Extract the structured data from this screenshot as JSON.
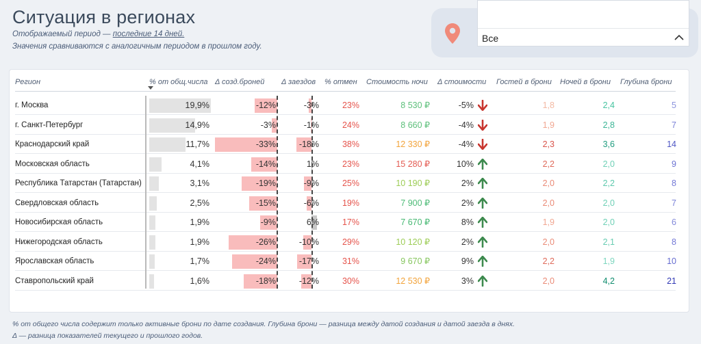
{
  "header": {
    "title": "Ситуация в регионах",
    "subtitle_prefix": "Отображаемый период — ",
    "subtitle_link": "последние 14 дней.",
    "subtitle2": "Значения сравниваются с аналогичным периодом в прошлом году."
  },
  "filter": {
    "selected": "Все",
    "icon": "location-pin-icon",
    "chevron_icon": "chevron-up-icon"
  },
  "table": {
    "columns": [
      "Регион",
      "% от общ.числа",
      "Δ созд.броней",
      "Δ заездов",
      "% отмен",
      "Стоимость ночи",
      "Δ стоимости",
      "Гостей в брони",
      "Ночей в брони",
      "Глубина брони"
    ],
    "rows": [
      {
        "region": "г. Москва",
        "share": "19,9%",
        "share_v": 19.9,
        "created": "-12%",
        "created_v": -12,
        "checkins": "-3%",
        "checkins_v": -3,
        "cancel": "23%",
        "price": "8 530 ₽",
        "price_color": "#5cbf7a",
        "dprice": "-5%",
        "dir": "down",
        "guests": "1,8",
        "guests_color": "#f3b9a3",
        "nights": "2,4",
        "nights_color": "#46c3a0",
        "depth": "5",
        "depth_color": "#8c93dd"
      },
      {
        "region": "г. Санкт-Петербург",
        "share": "14,9%",
        "share_v": 14.9,
        "created": "-3%",
        "created_v": -3,
        "checkins": "-1%",
        "checkins_v": -1,
        "cancel": "24%",
        "price": "8 660 ₽",
        "price_color": "#5cbf7a",
        "dprice": "-4%",
        "dir": "down",
        "guests": "1,9",
        "guests_color": "#f1a792",
        "nights": "2,8",
        "nights_color": "#3cb596",
        "depth": "7",
        "depth_color": "#7b82d8"
      },
      {
        "region": "Краснодарский край",
        "share": "11,7%",
        "share_v": 11.7,
        "created": "-33%",
        "created_v": -33,
        "checkins": "-18%",
        "checkins_v": -18,
        "cancel": "38%",
        "price": "12 330 ₽",
        "price_color": "#f2a33a",
        "dprice": "-4%",
        "dir": "down",
        "guests": "2,3",
        "guests_color": "#d9534a",
        "nights": "3,6",
        "nights_color": "#1f9c7e",
        "depth": "14",
        "depth_color": "#4f57c4"
      },
      {
        "region": "Московская область",
        "share": "4,1%",
        "share_v": 4.1,
        "created": "-14%",
        "created_v": -14,
        "checkins": "1%",
        "checkins_v": 1,
        "cancel": "23%",
        "price": "15 280 ₽",
        "price_color": "#e35b52",
        "dprice": "10%",
        "dir": "up",
        "guests": "2,2",
        "guests_color": "#df6a5a",
        "nights": "2,0",
        "nights_color": "#6fd0b6",
        "depth": "9",
        "depth_color": "#6b72d2"
      },
      {
        "region": "Республика Татарстан (Татарстан)",
        "share": "3,1%",
        "share_v": 3.1,
        "created": "-19%",
        "created_v": -19,
        "checkins": "-9%",
        "checkins_v": -9,
        "cancel": "25%",
        "price": "10 190 ₽",
        "price_color": "#9ccc55",
        "dprice": "2%",
        "dir": "up",
        "guests": "2,0",
        "guests_color": "#ea8a76",
        "nights": "2,2",
        "nights_color": "#5cc8ac",
        "depth": "8",
        "depth_color": "#7378d6"
      },
      {
        "region": "Свердловская область",
        "share": "2,5%",
        "share_v": 2.5,
        "created": "-15%",
        "created_v": -15,
        "checkins": "-6%",
        "checkins_v": -6,
        "cancel": "19%",
        "price": "7 900 ₽",
        "price_color": "#4dbb77",
        "dprice": "2%",
        "dir": "up",
        "guests": "2,0",
        "guests_color": "#ea8a76",
        "nights": "2,0",
        "nights_color": "#6fd0b6",
        "depth": "7",
        "depth_color": "#7b82d8"
      },
      {
        "region": "Новосибирская область",
        "share": "1,9%",
        "share_v": 1.9,
        "created": "-9%",
        "created_v": -9,
        "checkins": "6%",
        "checkins_v": 6,
        "cancel": "17%",
        "price": "7 670 ₽",
        "price_color": "#46b872",
        "dprice": "8%",
        "dir": "up",
        "guests": "1,9",
        "guests_color": "#f1a792",
        "nights": "2,0",
        "nights_color": "#6fd0b6",
        "depth": "6",
        "depth_color": "#838ada"
      },
      {
        "region": "Нижегородская область",
        "share": "1,9%",
        "share_v": 1.9,
        "created": "-26%",
        "created_v": -26,
        "checkins": "-10%",
        "checkins_v": -10,
        "cancel": "29%",
        "price": "10 120 ₽",
        "price_color": "#9ccc55",
        "dprice": "2%",
        "dir": "up",
        "guests": "2,0",
        "guests_color": "#ea8a76",
        "nights": "2,1",
        "nights_color": "#66cbb1",
        "depth": "8",
        "depth_color": "#7378d6"
      },
      {
        "region": "Ярославская область",
        "share": "1,7%",
        "share_v": 1.7,
        "created": "-24%",
        "created_v": -24,
        "checkins": "-17%",
        "checkins_v": -17,
        "cancel": "31%",
        "price": "9 670 ₽",
        "price_color": "#86c65e",
        "dprice": "9%",
        "dir": "up",
        "guests": "2,2",
        "guests_color": "#df6a5a",
        "nights": "1,9",
        "nights_color": "#7dd6bf",
        "depth": "10",
        "depth_color": "#656cd0"
      },
      {
        "region": "Ставропольский край",
        "share": "1,6%",
        "share_v": 1.6,
        "created": "-18%",
        "created_v": -18,
        "checkins": "-12%",
        "checkins_v": -12,
        "cancel": "30%",
        "price": "12 530 ₽",
        "price_color": "#f2a33a",
        "dprice": "3%",
        "dir": "up",
        "guests": "2,0",
        "guests_color": "#ea8a76",
        "nights": "4,2",
        "nights_color": "#0f8c6e",
        "depth": "21",
        "depth_color": "#2f37b4"
      }
    ]
  },
  "colors": {
    "cancel": "#e5534b",
    "arrow_down": "#c8362f",
    "arrow_up": "#3d8a4e"
  },
  "footer": {
    "line1": "% от общего числа содержит только активные брони по дате создания.  Глубина брони — разница между датой создания и датой заезда в днях.",
    "line2": "Δ — разница показателей текущего и прошлого годов."
  }
}
